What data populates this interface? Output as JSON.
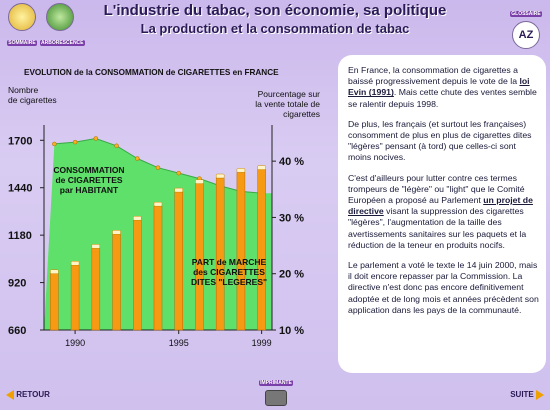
{
  "header": {
    "title": "L'industrie du tabac, son économie, sa politique",
    "subtitle": "La production et la consommation de tabac",
    "nav_left": [
      "SOMMAIRE",
      "ARBORESCENCE"
    ],
    "nav_right": "GLOSSAIRE",
    "glossary_glyph": "AZ"
  },
  "colors": {
    "green_area": "#5ee06a",
    "bar_orange": "#f59a12",
    "bar_cap": "#fff4c8",
    "title_text": "#2a1a55"
  },
  "chart_data": {
    "type": "bar",
    "title": "EVOLUTION de la CONSOMMATION de CIGARETTES en FRANCE",
    "left_axis_label": [
      "Nombre",
      "de cigarettes"
    ],
    "right_axis_label": [
      "Pourcentage sur",
      "la vente totale de",
      "cigarettes"
    ],
    "left_ticks": [
      660,
      920,
      1180,
      1440,
      1700
    ],
    "right_ticks": [
      "10 %",
      "20 %",
      "30 %",
      "40 %"
    ],
    "right_range": [
      10,
      45
    ],
    "left_range": [
      660,
      1740
    ],
    "x_ticks": [
      "1990",
      "1995",
      "1999"
    ],
    "years": [
      1989,
      1990,
      1991,
      1992,
      1993,
      1994,
      1995,
      1996,
      1997,
      1998,
      1999
    ],
    "area_series": {
      "name": "CONSOMMATION de CIGARETTES par HABITANT",
      "values": [
        1680,
        1690,
        1710,
        1670,
        1600,
        1550,
        1520,
        1490,
        1450,
        1420,
        1410
      ]
    },
    "bar_series": {
      "name": "PART de MARCHE des CIGARETTES DITES \"LEGERES\"",
      "values": [
        20.0,
        21.5,
        24.5,
        27.0,
        29.5,
        32.0,
        34.5,
        36.0,
        37.0,
        38.0,
        38.5
      ]
    },
    "area_label": [
      "CONSOMMATION",
      "de CIGARETTES",
      "par HABITANT"
    ],
    "bar_label": [
      "PART de MARCHE",
      "des CIGARETTES",
      "DITES \"LEGERES\""
    ]
  },
  "panel": {
    "p1_a": "En France, la consommation de cigarettes a baissé progressivement depuis le vote de la ",
    "p1_link": "loi Evin (1991)",
    "p1_b": ". Mais cette chute des ventes semble se ralentir depuis 1998.",
    "p2": "De plus, les français (et surtout les françaises) consomment de plus en plus de cigarettes dites \"légères\" pensant (à tord) que celles-ci sont moins nocives.",
    "p3_a": "C'est d'ailleurs pour lutter contre ces termes trompeurs de \"légère\" ou \"light\" que le Comité Européen a proposé au Parlement ",
    "p3_link": "un projet de directive",
    "p3_b": " visant la suppression des cigarettes \"légères\", l'augmentation de la taille des avertissements sanitaires sur les paquets et la réduction de la teneur en produits nocifs.",
    "p4": "Le parlement a voté le texte le 14 juin 2000, mais il doit encore repasser par la Commission. La directive n'est donc pas encore definitivement adoptée et de long mois et années précèdent son application dans les pays de la communauté."
  },
  "footer": {
    "back": "RETOUR",
    "next": "SUITE",
    "print": "IMPRIMANTE"
  }
}
